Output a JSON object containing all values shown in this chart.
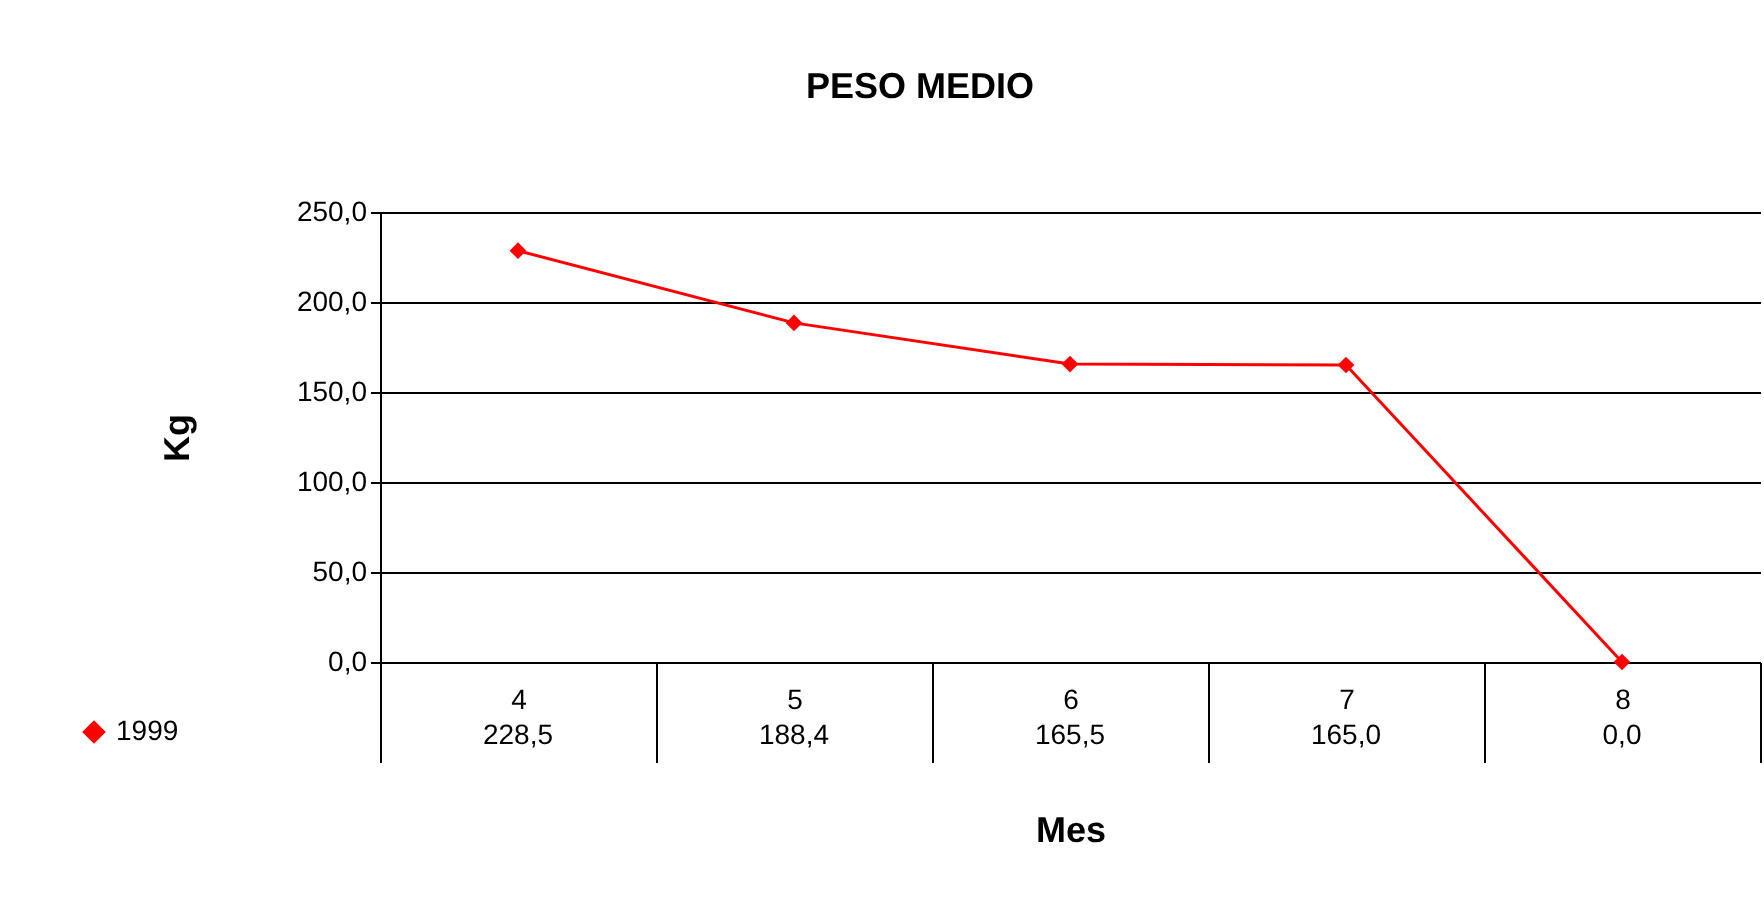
{
  "chart_data": {
    "type": "line",
    "title": "PESO MEDIO",
    "xlabel": "Mes",
    "ylabel": "Kg",
    "categories": [
      "4",
      "5",
      "6",
      "7",
      "8"
    ],
    "series": [
      {
        "name": "1999",
        "color": "#ff0000",
        "values": [
          228.5,
          188.4,
          165.5,
          165.0,
          0.0
        ],
        "value_labels": [
          "228,5",
          "188,4",
          "165,5",
          "165,0",
          "0,0"
        ]
      }
    ],
    "ylim": [
      0,
      250
    ],
    "yticks": [
      {
        "value": 0,
        "label": "0,0"
      },
      {
        "value": 50,
        "label": "50,0"
      },
      {
        "value": 100,
        "label": "100,0"
      },
      {
        "value": 150,
        "label": "150,0"
      },
      {
        "value": 200,
        "label": "200,0"
      },
      {
        "value": 250,
        "label": "250,0"
      }
    ],
    "grid": "y",
    "legend": "bottom left",
    "marker": "diamond"
  }
}
